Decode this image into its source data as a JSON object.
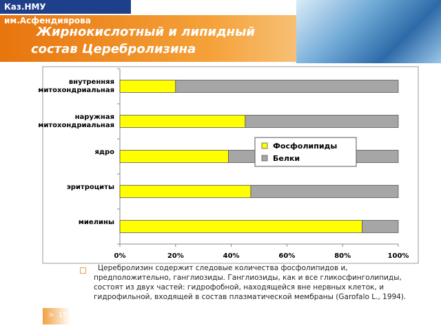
{
  "header": {
    "institution": "Каз.НМУ им.Асфендиярова",
    "title": "Жирнокислотный и липидный\nсостав Церебролизина"
  },
  "chart_data": {
    "type": "bar",
    "orientation": "horizontal",
    "stacked": true,
    "categories": [
      "внутренняя\nмитохондриальная",
      "наружная\nмитохондриальная",
      "ядро",
      "эритроциты",
      "миелины"
    ],
    "series": [
      {
        "name": "Фосфолипиды",
        "color": "#ffff00",
        "values": [
          20,
          45,
          39,
          47,
          87
        ]
      },
      {
        "name": "Белки",
        "color": "#a6a6a6",
        "values": [
          80,
          55,
          61,
          53,
          13
        ]
      }
    ],
    "xlim": [
      0,
      100
    ],
    "xticks": [
      {
        "value": 0,
        "label": "0%"
      },
      {
        "value": 20,
        "label": "20%"
      },
      {
        "value": 40,
        "label": "40%"
      },
      {
        "value": 60,
        "label": "60%"
      },
      {
        "value": 80,
        "label": "80%"
      },
      {
        "value": 100,
        "label": "100%"
      }
    ],
    "legend": "right"
  },
  "body": {
    "text": "Церебролизин содержит следовые количества фосфолипидов и, предположительно, ганглиозиды. Ганглиозиды, как и все гликосфинголипиды, состоят из двух частей: гидрофобной, находящейся вне нервных клеток, и гидрофильной, входящей в состав плазматической мембраны (Garofalo L., 1994)."
  },
  "footer": {
    "slide_number": ">  15"
  }
}
